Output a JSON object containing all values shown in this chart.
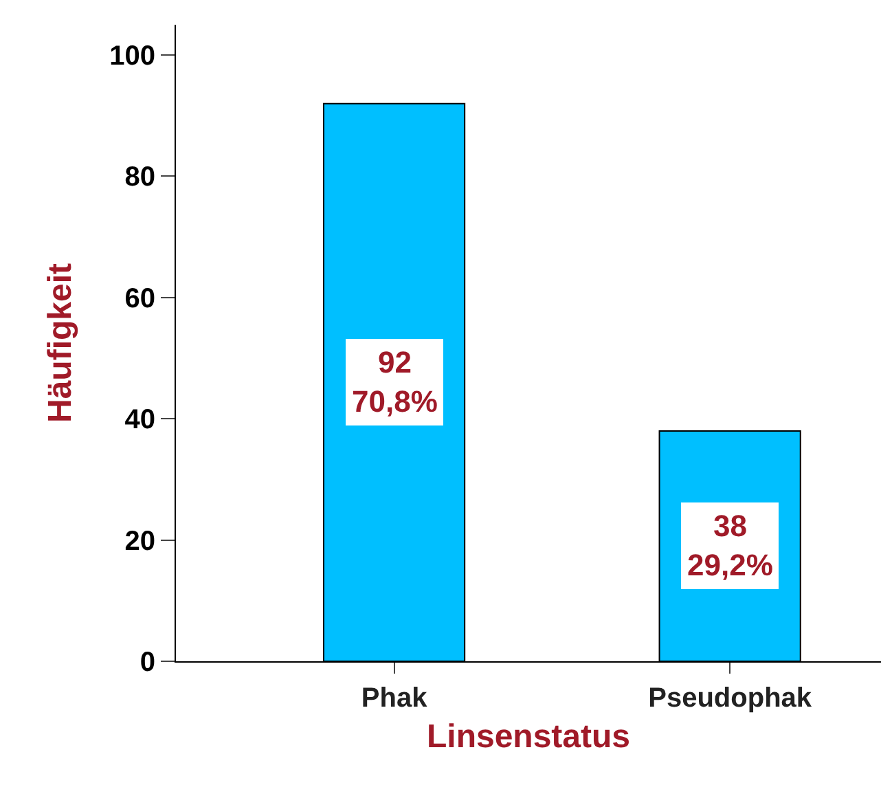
{
  "chart_data": {
    "type": "bar",
    "xlabel": "Linsenstatus",
    "ylabel": "Häufigkeit",
    "categories": [
      "Phak",
      "Pseudophak"
    ],
    "values": [
      92,
      38
    ],
    "value_labels": [
      "92\n70,8%",
      "38\n29,2%"
    ],
    "color": "#00bfff",
    "ylim": [
      0,
      105
    ],
    "yticks": [
      0,
      20,
      40,
      60,
      80,
      100
    ]
  }
}
